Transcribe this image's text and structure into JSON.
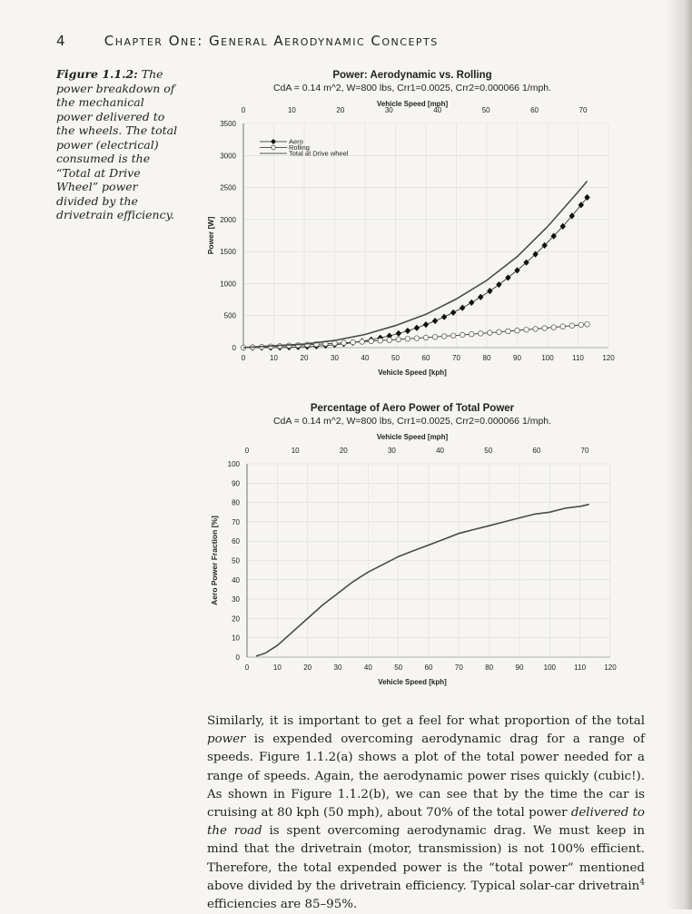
{
  "header": {
    "page_number": "4",
    "chapter": "Chapter One: General Aerodynamic Concepts"
  },
  "caption": {
    "label": "Figure 1.1.2:",
    "text": " The power breakdown of the mechanical power delivered to the wheels. The total power (electrical) consumed is the “Total at Drive Wheel” power divided by the drivetrain efficiency."
  },
  "chart_data": [
    {
      "type": "line",
      "title": "Power: Aerodynamic vs. Rolling",
      "subtitle": "CdA = 0.14 m^2, W=800 lbs, Crr1=0.0025, Crr2=0.000066 1/mph.",
      "xlabel": "Vehicle Speed [kph]",
      "x2label": "Vehicle Speed [mph]",
      "ylabel": "Power [W]",
      "xlim": [
        0,
        120
      ],
      "ylim": [
        0,
        3500
      ],
      "x2lim": [
        0,
        70
      ],
      "x_ticks": [
        "0",
        "10",
        "20",
        "30",
        "40",
        "50",
        "60",
        "70",
        "80",
        "90",
        "100",
        "110",
        "120"
      ],
      "x2_ticks": [
        "0",
        "10",
        "20",
        "30",
        "40",
        "50",
        "60",
        "70"
      ],
      "y_ticks": [
        "0",
        "500",
        "1000",
        "1500",
        "2000",
        "2500",
        "3000",
        "3500"
      ],
      "legend": [
        "Aero",
        "Rolling",
        "Total at Drive wheel"
      ],
      "legend_position": "top-left",
      "series": [
        {
          "name": "Aero",
          "marker": "filled-diamond",
          "x": [
            0,
            3,
            6,
            9,
            12,
            15,
            18,
            21,
            24,
            27,
            30,
            33,
            36,
            39,
            42,
            45,
            48,
            51,
            54,
            57,
            60,
            63,
            66,
            69,
            72,
            75,
            78,
            81,
            84,
            87,
            90,
            93,
            96,
            99,
            102,
            105,
            108,
            111,
            113
          ],
          "y": [
            0,
            0,
            1,
            2,
            3,
            6,
            10,
            16,
            23,
            33,
            45,
            60,
            78,
            99,
            123,
            152,
            184,
            221,
            262,
            308,
            360,
            417,
            479,
            548,
            622,
            703,
            790,
            884,
            984,
            1092,
            1206,
            1329,
            1458,
            1596,
            1741,
            1894,
            2056,
            2227,
            2345
          ]
        },
        {
          "name": "Rolling",
          "marker": "open-circle",
          "x": [
            0,
            3,
            6,
            9,
            12,
            15,
            18,
            21,
            24,
            27,
            30,
            33,
            36,
            39,
            42,
            45,
            48,
            51,
            54,
            57,
            60,
            63,
            66,
            69,
            72,
            75,
            78,
            81,
            84,
            87,
            90,
            93,
            96,
            99,
            102,
            105,
            108,
            111,
            113
          ],
          "y": [
            0,
            6,
            12,
            18,
            24,
            31,
            37,
            45,
            52,
            60,
            67,
            75,
            84,
            92,
            101,
            110,
            119,
            128,
            138,
            147,
            157,
            167,
            178,
            188,
            199,
            210,
            221,
            233,
            244,
            256,
            268,
            280,
            292,
            304,
            317,
            330,
            343,
            356,
            365
          ]
        },
        {
          "name": "Total at Drive wheel",
          "x": [
            0,
            10,
            20,
            30,
            40,
            50,
            60,
            70,
            80,
            90,
            100,
            110,
            113
          ],
          "y": [
            0,
            30,
            55,
            112,
            205,
            345,
            520,
            760,
            1050,
            1420,
            1890,
            2430,
            2600
          ]
        }
      ]
    },
    {
      "type": "line",
      "title": "Percentage of Aero Power of Total Power",
      "subtitle": "CdA = 0.14 m^2, W=800 lbs, Crr1=0.0025, Crr2=0.000066 1/mph.",
      "xlabel": "Vehicle Speed [kph]",
      "x2label": "Vehicle Speed [mph]",
      "ylabel": "Aero Power Fraction [%]",
      "xlim": [
        0,
        120
      ],
      "ylim": [
        0,
        100
      ],
      "x2lim": [
        0,
        70
      ],
      "x_ticks": [
        "0",
        "10",
        "20",
        "30",
        "40",
        "50",
        "60",
        "70",
        "80",
        "90",
        "100",
        "110",
        "120"
      ],
      "x2_ticks": [
        "0",
        "10",
        "20",
        "30",
        "40",
        "50",
        "60",
        "70"
      ],
      "y_ticks": [
        "0",
        "10",
        "20",
        "30",
        "40",
        "50",
        "60",
        "70",
        "80",
        "90",
        "100"
      ],
      "series": [
        {
          "name": "",
          "x": [
            3,
            6,
            10,
            15,
            20,
            25,
            30,
            35,
            40,
            45,
            50,
            55,
            60,
            65,
            70,
            75,
            80,
            85,
            90,
            95,
            100,
            105,
            110,
            113
          ],
          "y": [
            0.5,
            2,
            6,
            13,
            20,
            27,
            33,
            39,
            44,
            48,
            52,
            55,
            58,
            61,
            64,
            66,
            68,
            70,
            72,
            74,
            75,
            77,
            78,
            79
          ]
        }
      ]
    }
  ],
  "body": {
    "p1": "Similarly, it is important to get a feel for what proportion of the total ",
    "p1_em": "power",
    "p2": " is expended overcoming aerodynamic drag for a range of speeds. Figure 1.1.2(a) shows a plot of the total power needed for a range of speeds. Again, the aerodynamic power rises quickly (cubic!). As shown in Figure 1.1.2(b), we can see that by the time the car is cruising at 80 kph (50 mph), about 70% of the total power ",
    "p2_em": "delivered to the road",
    "p3": " is spent overcoming aerodynamic drag. We must keep in mind that the drivetrain (motor, transmission) is not 100% efficient. Therefore, the total expended power is the “total power” mentioned above divided by the drivetrain efficiency. Typical solar-car drivetrain",
    "p3_sup": "4",
    "p4": " efficiencies are 85–95%."
  }
}
